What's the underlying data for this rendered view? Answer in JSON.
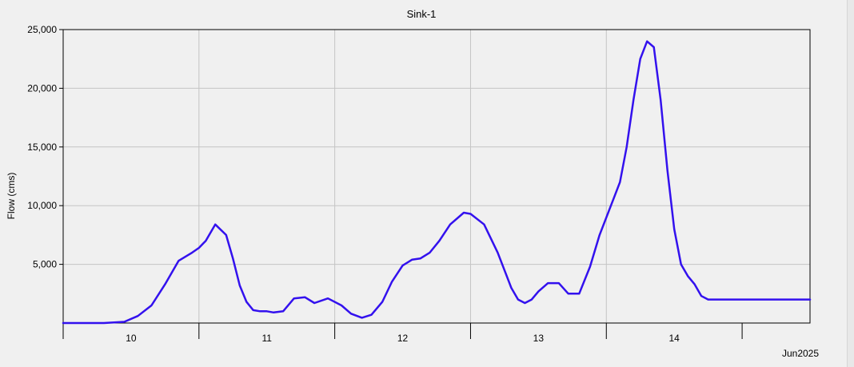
{
  "colors": {
    "background": "#f0f0f0",
    "series": "#3311ee",
    "grid": "#c4c4c4",
    "axis": "#000000"
  },
  "chart_data": {
    "type": "line",
    "title": "Sink-1",
    "ylabel": "Flow (cms)",
    "xlabel": "",
    "period_label": "Jun2025",
    "x_unit": "day of month (June 2025)",
    "xlim": [
      9.5,
      15.0
    ],
    "ylim": [
      0,
      25000
    ],
    "yticks": [
      5000,
      10000,
      15000,
      20000,
      25000
    ],
    "ytick_labels": [
      "5,000",
      "10,000",
      "15,000",
      "20,000",
      "25,000"
    ],
    "xticks": [
      10.0,
      11.0,
      12.0,
      13.0,
      14.0
    ],
    "xtick_labels": [
      "10",
      "11",
      "12",
      "13",
      "14"
    ],
    "grid": true,
    "legend": "none",
    "series": [
      {
        "x": [
          9.5,
          9.65,
          9.8,
          9.95,
          10.05,
          10.15,
          10.25,
          10.35,
          10.45,
          10.5,
          10.55,
          10.62,
          10.7,
          10.75,
          10.8,
          10.85,
          10.9,
          10.95,
          11.0,
          11.05,
          11.12,
          11.2,
          11.28,
          11.35,
          11.45,
          11.55,
          11.62,
          11.7,
          11.77,
          11.85,
          11.92,
          12.0,
          12.07,
          12.13,
          12.2,
          12.27,
          12.35,
          12.45,
          12.5,
          12.6,
          12.7,
          12.75,
          12.8,
          12.85,
          12.9,
          12.95,
          13.0,
          13.07,
          13.15,
          13.22,
          13.3,
          13.38,
          13.45,
          13.5,
          13.55,
          13.6,
          13.65,
          13.7,
          13.75,
          13.8,
          13.85,
          13.9,
          13.95,
          14.0,
          14.05,
          14.1,
          14.15,
          14.2,
          14.25,
          14.3,
          14.37,
          14.45,
          14.53,
          14.6,
          14.67,
          14.75,
          14.83,
          14.9,
          15.0
        ],
        "y": [
          0,
          0,
          0,
          100,
          600,
          1500,
          3300,
          5300,
          6000,
          6400,
          7000,
          8400,
          7500,
          5500,
          3200,
          1800,
          1100,
          1000,
          1000,
          900,
          1000,
          2100,
          2200,
          1700,
          2100,
          1500,
          800,
          450,
          700,
          1800,
          3500,
          4900,
          5400,
          5500,
          6000,
          7000,
          8400,
          9400,
          9300,
          8400,
          6000,
          4500,
          3000,
          2000,
          1700,
          2000,
          2700,
          3400,
          3400,
          2500,
          2500,
          4800,
          7500,
          9000,
          10500,
          12000,
          15000,
          19000,
          22500,
          24000,
          23500,
          19000,
          13000,
          8000,
          5000,
          4000,
          3300,
          2300,
          2000,
          2000,
          2000,
          2000,
          2000,
          2000,
          2000,
          2000,
          2000,
          2000,
          2000
        ]
      }
    ]
  }
}
